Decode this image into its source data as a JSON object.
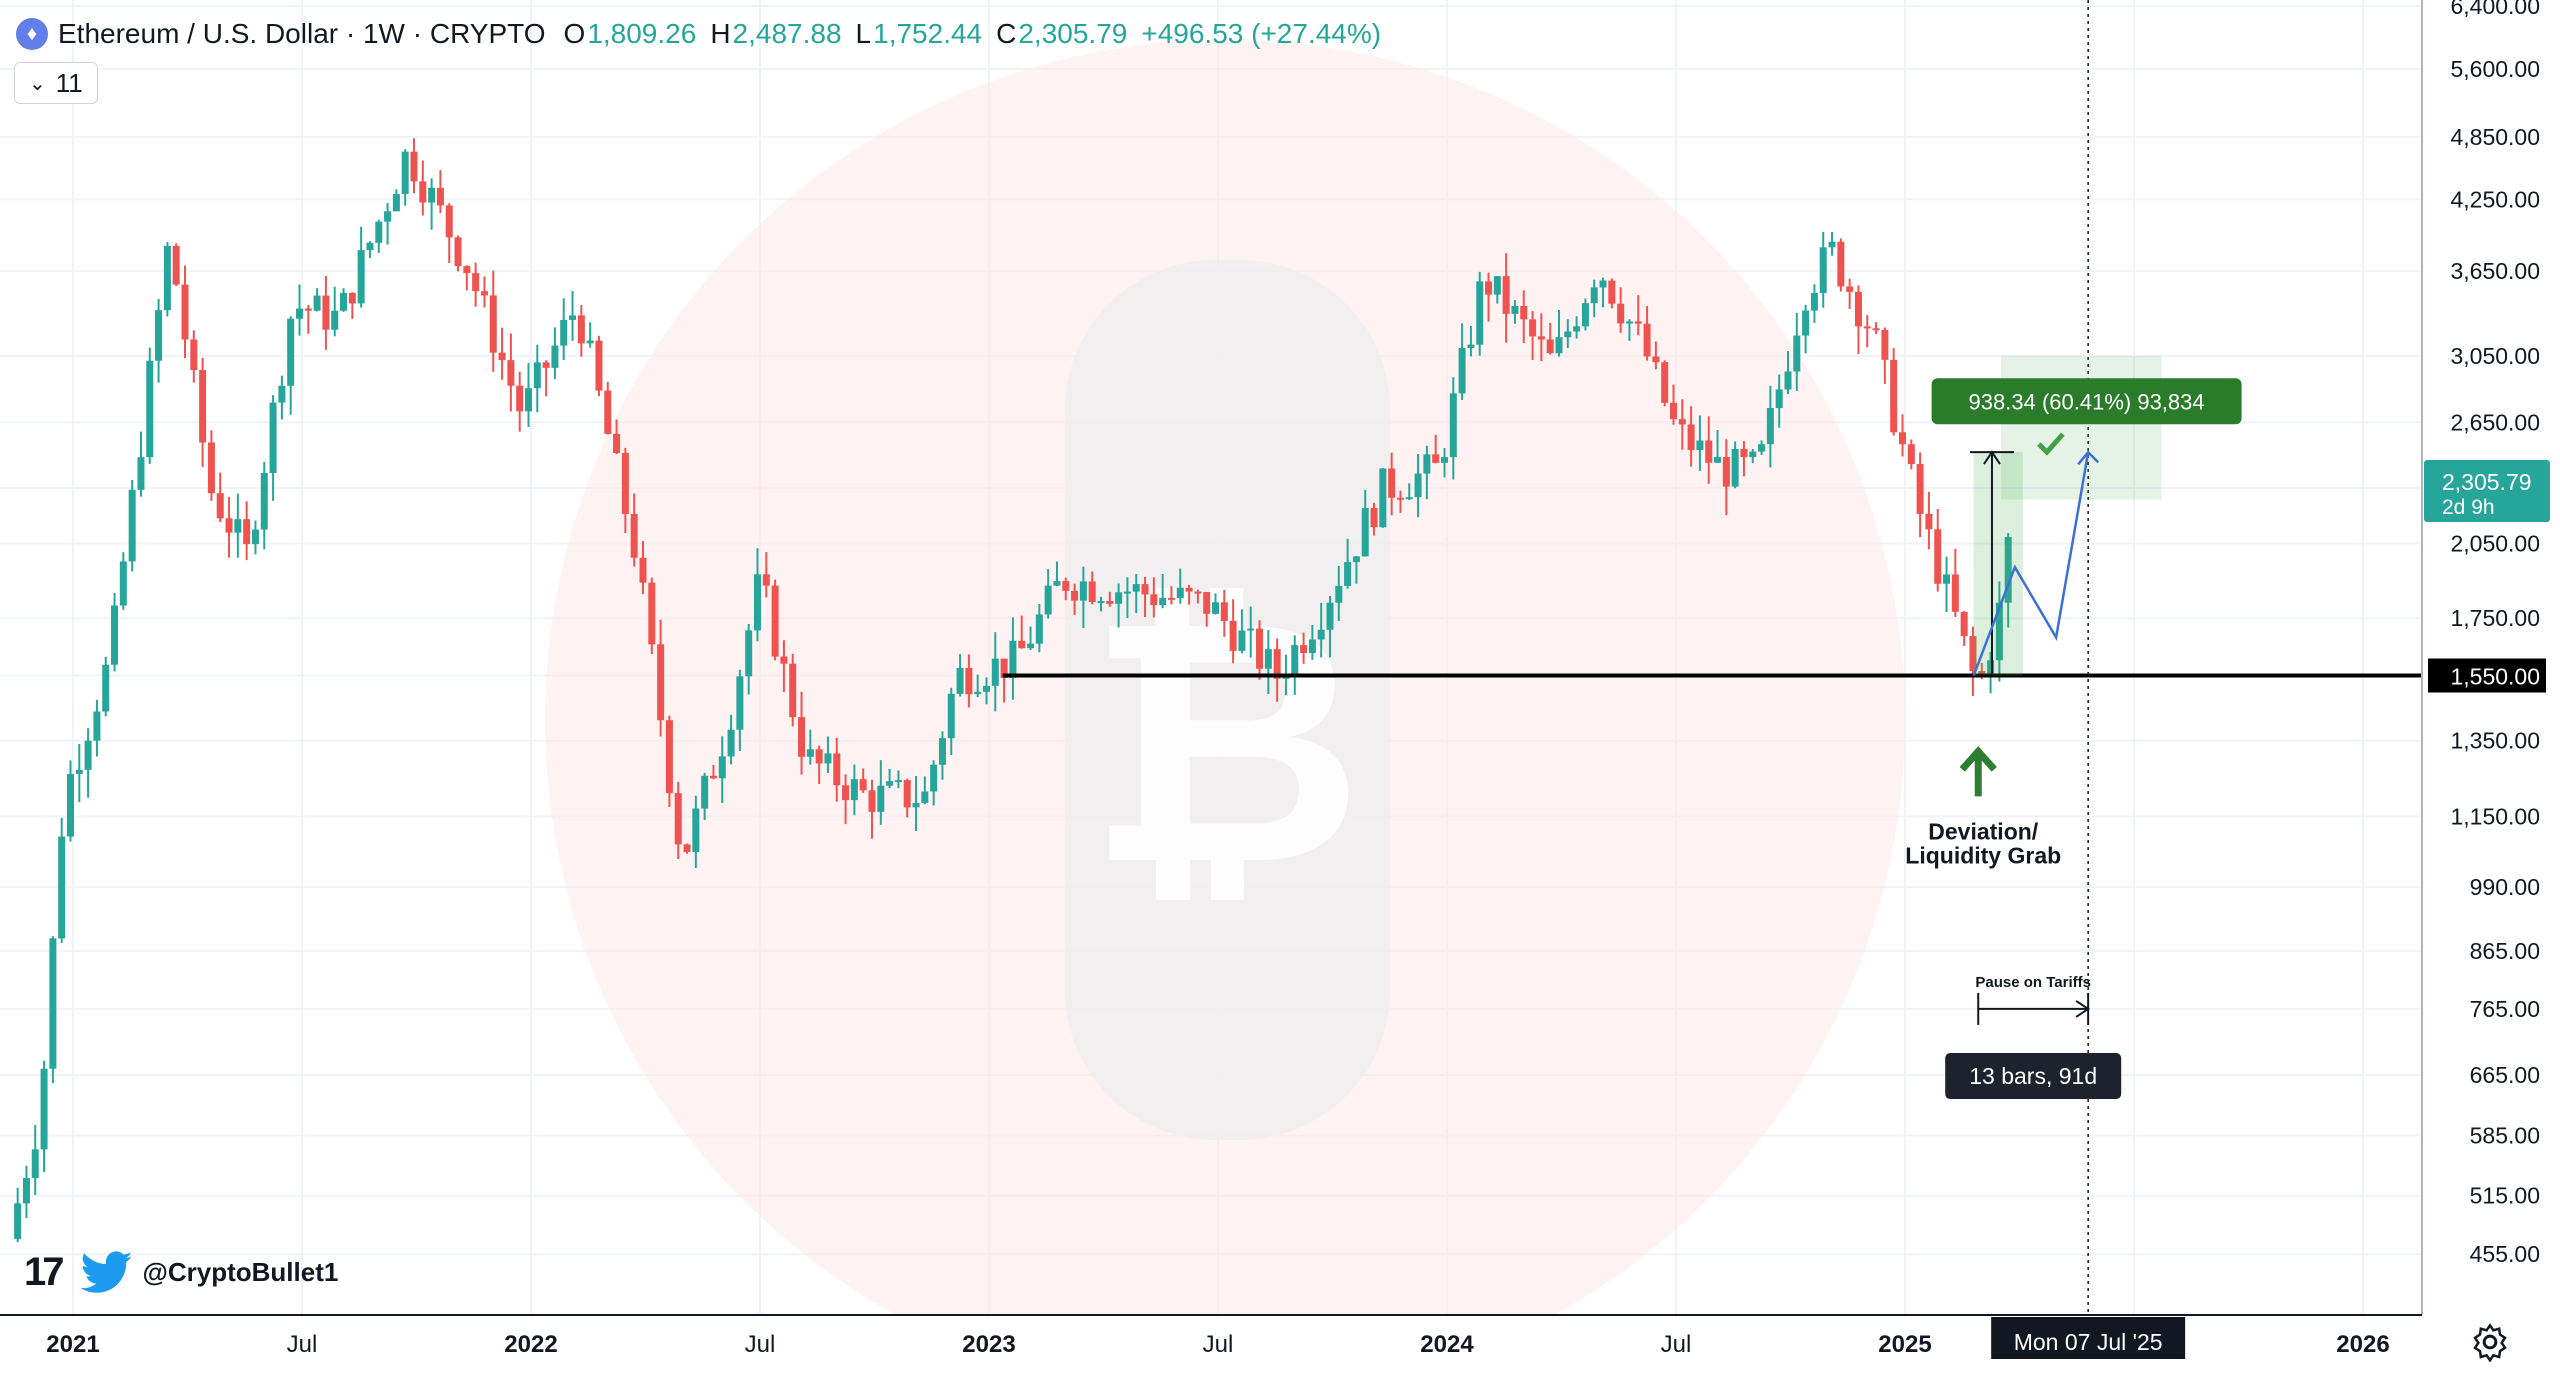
{
  "header": {
    "symbol": "Ethereum / U.S. Dollar · 1W · CRYPTO",
    "o_label": "O",
    "o": "1,809.26",
    "h_label": "H",
    "h": "2,487.88",
    "l_label": "L",
    "l": "1,752.44",
    "c_label": "C",
    "c": "2,305.79",
    "change": "+496.53 (+27.44%)",
    "icon": "ethereum-icon"
  },
  "indicator_toggle": {
    "count": "11",
    "icon": "chevron-down-icon"
  },
  "branding": {
    "logo": "tradingview-logo",
    "twitter_icon": "twitter-bird-icon",
    "handle": "@CryptoBullet1"
  },
  "colors": {
    "up": "#26a69a",
    "down": "#ef5350",
    "accent": "#2a7b2a",
    "projection": "#3d6fd6",
    "label_bg": "#26a69a"
  },
  "chart_data": {
    "type": "candlestick",
    "x_ticks": [
      "2021",
      "Jul",
      "2022",
      "Jul",
      "2023",
      "Jul",
      "2024",
      "Jul",
      "2025",
      "Jul",
      "2026"
    ],
    "y_ticks": [
      "6,400.00",
      "5,600.00",
      "4,850.00",
      "4,250.00",
      "3,650.00",
      "3,050.00",
      "2,650.00",
      "2,305.79",
      "2,050.00",
      "1,750.00",
      "1,550.00",
      "1,350.00",
      "1,150.00",
      "990.00",
      "865.00",
      "765.00",
      "665.00",
      "585.00",
      "515.00",
      "455.00"
    ],
    "y_scale": "log",
    "ylim": [
      420,
      6400
    ],
    "series_path": [
      [
        2020.98,
        470
      ],
      [
        2021.05,
        620
      ],
      [
        2021.1,
        1200
      ],
      [
        2021.2,
        1600
      ],
      [
        2021.33,
        3900
      ],
      [
        2021.42,
        2300
      ],
      [
        2021.5,
        2000
      ],
      [
        2021.6,
        3400
      ],
      [
        2021.7,
        3300
      ],
      [
        2021.85,
        4700
      ],
      [
        2021.98,
        3700
      ],
      [
        2022.1,
        2700
      ],
      [
        2022.22,
        3400
      ],
      [
        2022.35,
        2000
      ],
      [
        2022.45,
        1050
      ],
      [
        2022.55,
        1400
      ],
      [
        2022.62,
        1900
      ],
      [
        2022.72,
        1300
      ],
      [
        2022.85,
        1200
      ],
      [
        2022.98,
        1200
      ],
      [
        2023.05,
        1550
      ],
      [
        2023.18,
        1600
      ],
      [
        2023.28,
        1900
      ],
      [
        2023.45,
        1850
      ],
      [
        2023.6,
        1800
      ],
      [
        2023.75,
        1550
      ],
      [
        2023.85,
        1800
      ],
      [
        2023.98,
        2300
      ],
      [
        2024.1,
        2400
      ],
      [
        2024.2,
        3600
      ],
      [
        2024.35,
        3000
      ],
      [
        2024.45,
        3700
      ],
      [
        2024.55,
        3100
      ],
      [
        2024.62,
        2600
      ],
      [
        2024.72,
        2400
      ],
      [
        2024.8,
        2400
      ],
      [
        2024.9,
        3500
      ],
      [
        2024.96,
        3800
      ],
      [
        2025.05,
        3200
      ],
      [
        2025.15,
        2200
      ],
      [
        2025.22,
        1800
      ],
      [
        2025.28,
        1500
      ],
      [
        2025.33,
        1800
      ],
      [
        2025.36,
        2305.79
      ]
    ],
    "levels": [
      {
        "price": 1550,
        "label": "1,550.00"
      }
    ],
    "current_price": {
      "value": "2,305.79",
      "countdown": "2d 9h"
    },
    "measure": {
      "label": "938.34 (60.41%) 93,834"
    },
    "projection_path": [
      [
        2025.27,
        1550
      ],
      [
        2025.36,
        1950
      ],
      [
        2025.45,
        1680
      ],
      [
        2025.52,
        2487
      ]
    ],
    "annotations": [
      {
        "text_line1": "Deviation/",
        "text_line2": "Liquidity Grab"
      },
      {
        "text": "Pause on Tariffs"
      }
    ],
    "bar_range": {
      "label": "13 bars, 91d"
    },
    "crosshair_date": "Mon 07 Jul '25"
  }
}
